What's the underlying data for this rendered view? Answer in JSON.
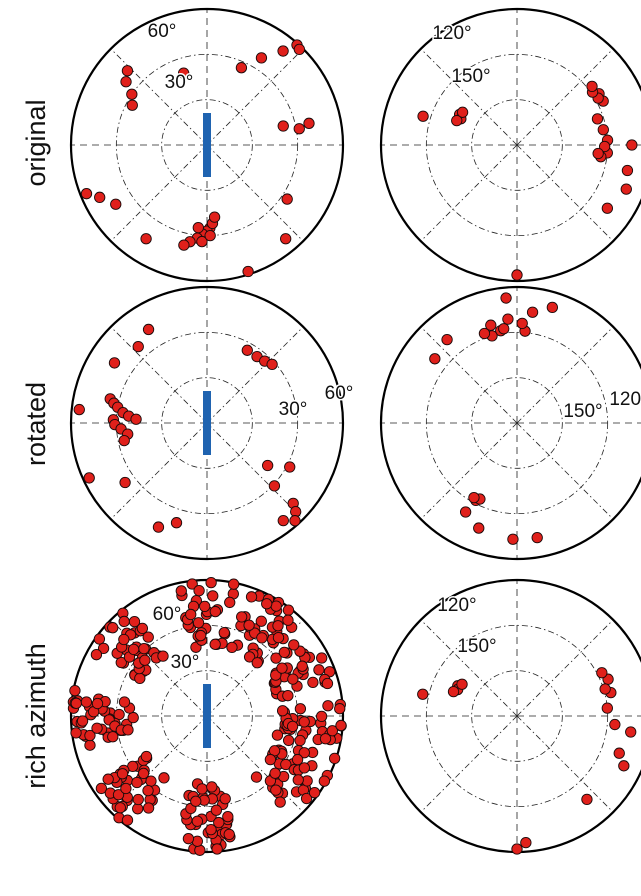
{
  "rows": [
    {
      "label": "original"
    },
    {
      "label": "rotated"
    },
    {
      "label": "rich azimuth"
    }
  ],
  "style": {
    "marker_fill": "#e0201b",
    "marker_edge": "#1a0a0a",
    "bar_color": "#1f63b0",
    "grid_color": "#222222",
    "frame_color": "#000000"
  },
  "chart_data": [
    {
      "type": "scatter",
      "projection": "polar",
      "row": "original",
      "column": "left",
      "ring_labels": [
        "60°",
        "30°"
      ],
      "ring_values": [
        60,
        30
      ],
      "radial_range": [
        0,
        90
      ],
      "inset_bar": true,
      "grid": "dashed rings and spokes",
      "points": [
        {
          "azimuth": 342,
          "angle": 50
        },
        {
          "azimuth": 313,
          "angle": 72
        },
        {
          "azimuth": 308,
          "angle": 68
        },
        {
          "azimuth": 304,
          "angle": 60
        },
        {
          "azimuth": 298,
          "angle": 56
        },
        {
          "azimuth": 24,
          "angle": 56
        },
        {
          "azimuth": 32,
          "angle": 68
        },
        {
          "azimuth": 42,
          "angle": 89
        },
        {
          "azimuth": 44,
          "angle": 88
        },
        {
          "azimuth": 39,
          "angle": 80
        },
        {
          "azimuth": 76,
          "angle": 52
        },
        {
          "azimuth": 80,
          "angle": 62
        },
        {
          "azimuth": 78,
          "angle": 69
        },
        {
          "azimuth": 124,
          "angle": 64
        },
        {
          "azimuth": 140,
          "angle": 81
        },
        {
          "azimuth": 162,
          "angle": 88
        },
        {
          "azimuth": 178,
          "angle": 55
        },
        {
          "azimuth": 180,
          "angle": 57
        },
        {
          "azimuth": 183,
          "angle": 59
        },
        {
          "azimuth": 186,
          "angle": 62
        },
        {
          "azimuth": 186,
          "angle": 55
        },
        {
          "azimuth": 190,
          "angle": 65
        },
        {
          "azimuth": 193,
          "angle": 68
        },
        {
          "azimuth": 183,
          "angle": 64
        },
        {
          "azimuth": 178,
          "angle": 60
        },
        {
          "azimuth": 176,
          "angle": 52
        },
        {
          "azimuth": 174,
          "angle": 48
        },
        {
          "azimuth": 213,
          "angle": 74
        },
        {
          "azimuth": 237,
          "angle": 72
        },
        {
          "azimuth": 244,
          "angle": 79
        },
        {
          "azimuth": 248,
          "angle": 86
        }
      ]
    },
    {
      "type": "scatter",
      "projection": "polar",
      "row": "original",
      "column": "right",
      "ring_labels": [
        "120°",
        "150°"
      ],
      "ring_values": [
        120,
        150
      ],
      "radial_range": [
        90,
        180
      ],
      "inset_bar": false,
      "grid": "dashed rings and spokes",
      "points": [
        {
          "azimuth": 298,
          "angle": 133
        },
        {
          "azimuth": 295,
          "angle": 131
        },
        {
          "azimuth": 301,
          "angle": 132
        },
        {
          "azimuth": 292,
          "angle": 133
        },
        {
          "azimuth": 287,
          "angle": 155
        },
        {
          "azimuth": 112,
          "angle": 168
        },
        {
          "azimuth": 90,
          "angle": 166
        },
        {
          "azimuth": 63,
          "angle": 154
        },
        {
          "azimuth": 58,
          "angle": 154
        },
        {
          "azimuth": 60,
          "angle": 152
        },
        {
          "azimuth": 55,
          "angle": 151
        },
        {
          "azimuth": 52,
          "angle": 153
        },
        {
          "azimuth": 72,
          "angle": 146
        },
        {
          "azimuth": 80,
          "angle": 148
        },
        {
          "azimuth": 87,
          "angle": 150
        },
        {
          "azimuth": 95,
          "angle": 150
        },
        {
          "azimuth": 91,
          "angle": 148
        },
        {
          "azimuth": 98,
          "angle": 146
        },
        {
          "azimuth": 96,
          "angle": 144
        },
        {
          "azimuth": 103,
          "angle": 165
        },
        {
          "azimuth": 125,
          "angle": 163
        },
        {
          "azimuth": 180,
          "angle": 176
        }
      ]
    },
    {
      "type": "scatter",
      "projection": "polar",
      "row": "rotated",
      "column": "left",
      "ring_labels": [
        "30°",
        "60°"
      ],
      "ring_values": [
        30,
        60
      ],
      "radial_range": [
        0,
        90
      ],
      "inset_bar": true,
      "grid": "dashed rings and spokes",
      "points": [
        {
          "azimuth": 328,
          "angle": 73
        },
        {
          "azimuth": 318,
          "angle": 68
        },
        {
          "azimuth": 303,
          "angle": 73
        },
        {
          "azimuth": 284,
          "angle": 66
        },
        {
          "azimuth": 282,
          "angle": 63
        },
        {
          "azimuth": 280,
          "angle": 60
        },
        {
          "azimuth": 277,
          "angle": 56
        },
        {
          "azimuth": 275,
          "angle": 52
        },
        {
          "azimuth": 272,
          "angle": 62
        },
        {
          "azimuth": 273,
          "angle": 47
        },
        {
          "azimuth": 269,
          "angle": 61
        },
        {
          "azimuth": 266,
          "angle": 57
        },
        {
          "azimuth": 262,
          "angle": 53
        },
        {
          "azimuth": 258,
          "angle": 56
        },
        {
          "azimuth": 276,
          "angle": 85
        },
        {
          "azimuth": 245,
          "angle": 86
        },
        {
          "azimuth": 234,
          "angle": 67
        },
        {
          "azimuth": 205,
          "angle": 76
        },
        {
          "azimuth": 197,
          "angle": 69
        },
        {
          "azimuth": 29,
          "angle": 55
        },
        {
          "azimuth": 37,
          "angle": 55
        },
        {
          "azimuth": 43,
          "angle": 56
        },
        {
          "azimuth": 48,
          "angle": 58
        },
        {
          "azimuth": 125,
          "angle": 49
        },
        {
          "azimuth": 118,
          "angle": 62
        },
        {
          "azimuth": 133,
          "angle": 61
        },
        {
          "azimuth": 133,
          "angle": 78
        },
        {
          "azimuth": 135,
          "angle": 83
        },
        {
          "azimuth": 138,
          "angle": 87
        },
        {
          "azimuth": 142,
          "angle": 82
        }
      ]
    },
    {
      "type": "scatter",
      "projection": "polar",
      "row": "rotated",
      "column": "right",
      "ring_labels": [
        "150°",
        "120°"
      ],
      "ring_values": [
        150,
        120
      ],
      "radial_range": [
        90,
        180
      ],
      "inset_bar": false,
      "grid": "dashed rings and spokes",
      "points": [
        {
          "azimuth": 350,
          "angle": 152
        },
        {
          "azimuth": 344,
          "angle": 150
        },
        {
          "azimuth": 352,
          "angle": 153
        },
        {
          "azimuth": 340,
          "angle": 153
        },
        {
          "azimuth": 345,
          "angle": 157
        },
        {
          "azimuth": 355,
          "angle": 159
        },
        {
          "azimuth": 5,
          "angle": 151
        },
        {
          "azimuth": 3,
          "angle": 156
        },
        {
          "azimuth": 308,
          "angle": 159
        },
        {
          "azimuth": 320,
          "angle": 162
        },
        {
          "azimuth": 8,
          "angle": 164
        },
        {
          "azimuth": 17,
          "angle": 170
        },
        {
          "azimuth": 355,
          "angle": 173
        },
        {
          "azimuth": 90,
          "angle": 178
        },
        {
          "azimuth": 210,
          "angle": 158
        },
        {
          "azimuth": 200,
          "angle": 164
        },
        {
          "azimuth": 208,
          "angle": 148
        },
        {
          "azimuth": 206,
          "angle": 146
        },
        {
          "azimuth": 210,
          "angle": 147
        },
        {
          "azimuth": 182,
          "angle": 167
        },
        {
          "azimuth": 170,
          "angle": 167
        }
      ]
    },
    {
      "type": "scatter",
      "projection": "polar",
      "row": "rich azimuth",
      "column": "left",
      "ring_labels": [
        "60°",
        "30°"
      ],
      "ring_values": [
        60,
        30
      ],
      "radial_range": [
        0,
        90
      ],
      "inset_bar": true,
      "grid": "dashed rings and spokes",
      "point_count_approx": 400,
      "clusters": [
        {
          "azimuth": 0,
          "angle_range": [
            45,
            90
          ],
          "count": 34
        },
        {
          "azimuth": 32,
          "angle_range": [
            48,
            90
          ],
          "count": 38
        },
        {
          "azimuth": 63,
          "angle_range": [
            48,
            90
          ],
          "count": 36
        },
        {
          "azimuth": 98,
          "angle_range": [
            48,
            90
          ],
          "count": 38
        },
        {
          "azimuth": 128,
          "angle_range": [
            50,
            90
          ],
          "count": 36
        },
        {
          "azimuth": 180,
          "angle_range": [
            45,
            90
          ],
          "count": 44
        },
        {
          "azimuth": 225,
          "angle_range": [
            48,
            90
          ],
          "count": 38
        },
        {
          "azimuth": 268,
          "angle_range": [
            48,
            90
          ],
          "count": 42
        },
        {
          "azimuth": 312,
          "angle_range": [
            48,
            90
          ],
          "count": 40
        }
      ]
    },
    {
      "type": "scatter",
      "projection": "polar",
      "row": "rich azimuth",
      "column": "right",
      "ring_labels": [
        "120°",
        "150°"
      ],
      "ring_values": [
        120,
        150
      ],
      "radial_range": [
        90,
        180
      ],
      "inset_bar": false,
      "grid": "dashed rings and spokes",
      "points": [
        {
          "azimuth": 297,
          "angle": 134
        },
        {
          "azimuth": 294,
          "angle": 133
        },
        {
          "azimuth": 300,
          "angle": 132
        },
        {
          "azimuth": 291,
          "angle": 135
        },
        {
          "azimuth": 283,
          "angle": 154
        },
        {
          "azimuth": 115,
          "angle": 168
        },
        {
          "azimuth": 98,
          "angle": 166
        },
        {
          "azimuth": 110,
          "angle": 162
        },
        {
          "azimuth": 76,
          "angle": 154
        },
        {
          "azimuth": 68,
          "angle": 155
        },
        {
          "azimuth": 73,
          "angle": 151
        },
        {
          "azimuth": 63,
          "angle": 153
        },
        {
          "azimuth": 85,
          "angle": 150
        },
        {
          "azimuth": 95,
          "angle": 155
        },
        {
          "azimuth": 140,
          "angle": 162
        },
        {
          "azimuth": 180,
          "angle": 178
        },
        {
          "azimuth": 176,
          "angle": 174
        }
      ]
    }
  ]
}
